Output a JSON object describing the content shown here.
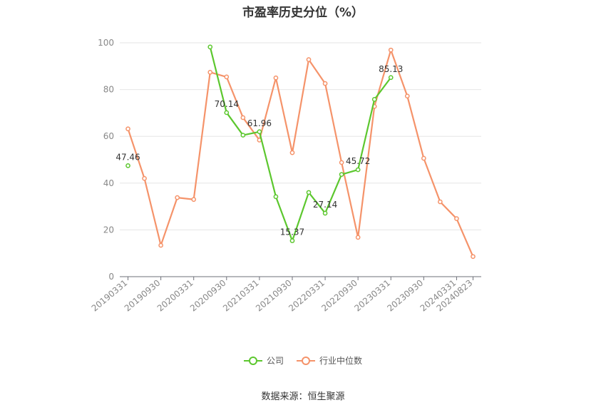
{
  "chart_data": {
    "type": "line",
    "title": "市盈率历史分位（%）",
    "xlabel": "",
    "ylabel": "",
    "ylim": [
      0,
      100
    ],
    "yticks": [
      0,
      20,
      40,
      60,
      80,
      100
    ],
    "x": [
      "20190331",
      "20190630",
      "20190930",
      "20191231",
      "20200331",
      "20200630",
      "20200930",
      "20201231",
      "20210331",
      "20210630",
      "20210930",
      "20211231",
      "20220331",
      "20220630",
      "20220930",
      "20221231",
      "20230331",
      "20230630",
      "20230930",
      "20231231",
      "20240331",
      "20240823"
    ],
    "xtick_labels": [
      "20190331",
      "20190930",
      "20200331",
      "20200930",
      "20210331",
      "20210930",
      "20220331",
      "20220930",
      "20230331",
      "20230930",
      "20240331",
      "20240823"
    ],
    "xtick_indices": [
      0,
      2,
      4,
      6,
      8,
      10,
      12,
      14,
      16,
      18,
      20,
      21
    ],
    "grid": true,
    "legend_position": "bottom",
    "series": [
      {
        "name": "公司",
        "color": "#5cc72e",
        "values": [
          47.46,
          null,
          null,
          null,
          null,
          98.2,
          70.14,
          60.5,
          61.96,
          34.2,
          15.37,
          36.0,
          27.14,
          43.7,
          45.72,
          75.8,
          85.13,
          null,
          null,
          null,
          null,
          null
        ],
        "data_labels": [
          {
            "index": 0,
            "text": "47.46"
          },
          {
            "index": 6,
            "text": "70.14"
          },
          {
            "index": 8,
            "text": "61.96"
          },
          {
            "index": 10,
            "text": "15.37"
          },
          {
            "index": 12,
            "text": "27.14"
          },
          {
            "index": 14,
            "text": "45.72"
          },
          {
            "index": 16,
            "text": "85.13"
          }
        ]
      },
      {
        "name": "行业中位数",
        "color": "#f5936a",
        "values": [
          63.2,
          42.0,
          13.4,
          33.8,
          33.0,
          87.4,
          85.4,
          68.0,
          58.4,
          85.0,
          53.0,
          92.8,
          82.6,
          48.8,
          16.8,
          72.8,
          96.9,
          77.2,
          50.6,
          32.0,
          24.8,
          8.6
        ]
      }
    ]
  },
  "source_text": "数据来源：恒生聚源"
}
